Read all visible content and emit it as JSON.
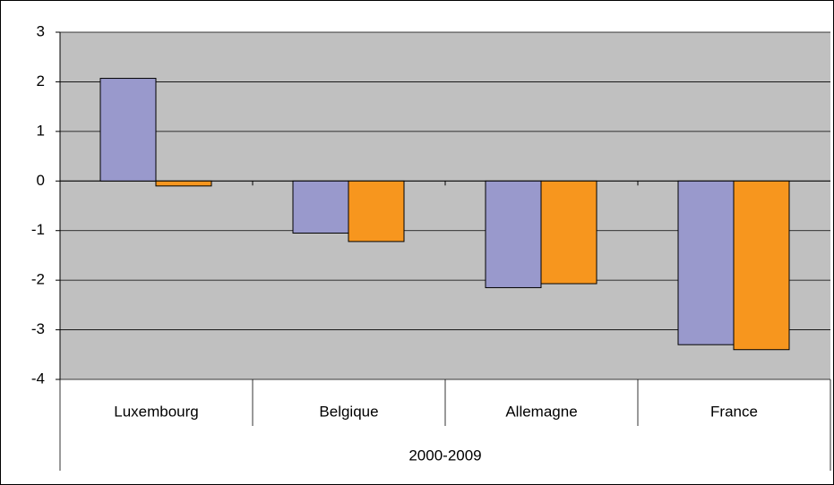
{
  "chart_data": {
    "type": "bar",
    "categories": [
      "Luxembourg",
      "Belgique",
      "Allemagne",
      "France"
    ],
    "group_label": "2000-2009",
    "series": [
      {
        "color": "#9999cc",
        "values": [
          2.07,
          -1.05,
          -2.15,
          -3.3
        ]
      },
      {
        "color": "#f7961e",
        "values": [
          -0.1,
          -1.22,
          -2.07,
          -3.4
        ]
      }
    ],
    "ylim": [
      -4,
      3
    ],
    "yticks": [
      -4,
      -3,
      -2,
      -1,
      0,
      1,
      2,
      3
    ],
    "grid": true
  }
}
